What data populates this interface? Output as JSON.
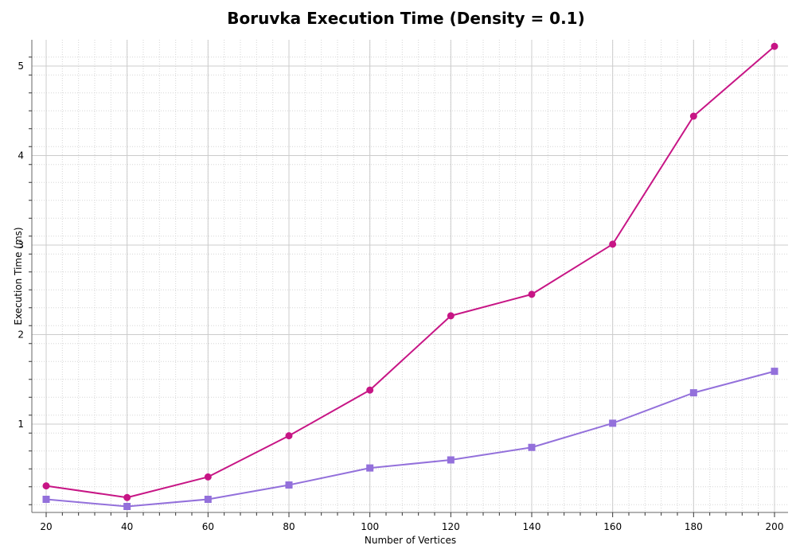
{
  "chart_data": {
    "type": "line",
    "title": "Boruvka Execution Time (Density = 0.1)",
    "xlabel": "Number of Vertices",
    "ylabel": "Execution Time (ms)",
    "xlim": [
      20,
      200
    ],
    "ylim": [
      0.1,
      5.3
    ],
    "x_ticks": [
      20,
      40,
      60,
      80,
      100,
      120,
      140,
      160,
      180,
      200
    ],
    "y_ticks": [
      1,
      2,
      3,
      4,
      5
    ],
    "grid": true,
    "legend": "none",
    "x": [
      20,
      40,
      60,
      80,
      100,
      120,
      140,
      160,
      180,
      200
    ],
    "series": [
      {
        "marker": "circle",
        "color": "#c71585",
        "values": [
          0.31,
          0.18,
          0.41,
          0.87,
          1.38,
          2.21,
          2.45,
          3.01,
          4.44,
          5.22
        ]
      },
      {
        "marker": "square",
        "color": "#9370db",
        "values": [
          0.16,
          0.08,
          0.16,
          0.32,
          0.51,
          0.6,
          0.74,
          1.01,
          1.35,
          1.59
        ]
      }
    ]
  }
}
